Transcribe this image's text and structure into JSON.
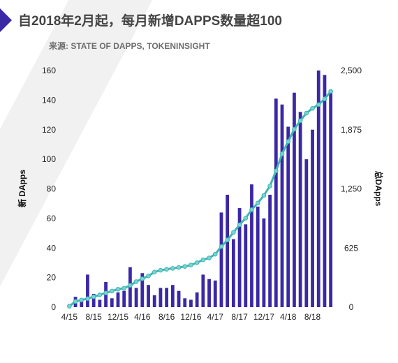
{
  "title": "自2018年2月起，每月新增DAPPS数量超100",
  "source": "来源: STATE OF DAPPS, TOKENINSIGHT",
  "colors": {
    "bar": "#3b28a6",
    "line": "#3fb5b3",
    "marker": "#7ad4d2",
    "accent": "#3b28a6"
  },
  "chart_data": {
    "type": "bar",
    "categories": [
      "2015-04",
      "2015-05",
      "2015-06",
      "2015-07",
      "2015-08",
      "2015-09",
      "2015-10",
      "2015-11",
      "2015-12",
      "2016-01",
      "2016-02",
      "2016-03",
      "2016-04",
      "2016-05",
      "2016-06",
      "2016-07",
      "2016-08",
      "2016-09",
      "2016-10",
      "2016-11",
      "2016-12",
      "2017-01",
      "2017-02",
      "2017-03",
      "2017-04",
      "2017-05",
      "2017-06",
      "2017-07",
      "2017-08",
      "2017-09",
      "2017-10",
      "2017-11",
      "2017-12",
      "2018-01",
      "2018-02",
      "2018-03",
      "2018-04",
      "2018-05",
      "2018-06",
      "2018-07",
      "2018-08",
      "2018-09",
      "2018-10",
      "2018-11"
    ],
    "x_tick_labels": [
      "4/15",
      "8/15",
      "12/15",
      "4/16",
      "8/16",
      "12/16",
      "4/17",
      "8/17",
      "12/17",
      "4/18",
      "8/18"
    ],
    "series": [
      {
        "axis": "left",
        "type": "bar",
        "values": [
          2,
          7,
          6,
          22,
          9,
          5,
          17,
          6,
          10,
          11,
          27,
          13,
          23,
          15,
          8,
          13,
          13,
          15,
          11,
          6,
          5,
          10,
          22,
          19,
          18,
          64,
          76,
          46,
          67,
          56,
          83,
          68,
          60,
          76,
          141,
          137,
          122,
          145,
          132,
          100,
          120,
          160,
          157,
          146
        ]
      },
      {
        "axis": "right",
        "type": "line",
        "values": [
          10,
          60,
          75,
          90,
          110,
          130,
          150,
          170,
          190,
          200,
          230,
          270,
          300,
          330,
          370,
          390,
          400,
          410,
          420,
          430,
          445,
          470,
          500,
          520,
          560,
          640,
          710,
          790,
          870,
          940,
          1030,
          1100,
          1180,
          1280,
          1440,
          1620,
          1750,
          1880,
          1970,
          2050,
          2100,
          2140,
          2200,
          2280
        ]
      }
    ],
    "ylabel_left": "新 DApps",
    "ylabel_right": "总DApps",
    "ylim_left": [
      0,
      160
    ],
    "ylim_right": [
      0,
      2500
    ],
    "yticks_left": [
      0,
      20,
      40,
      60,
      80,
      100,
      120,
      140,
      160
    ],
    "yticks_right": [
      0,
      625,
      1250,
      1875,
      2500
    ],
    "grid": false
  }
}
